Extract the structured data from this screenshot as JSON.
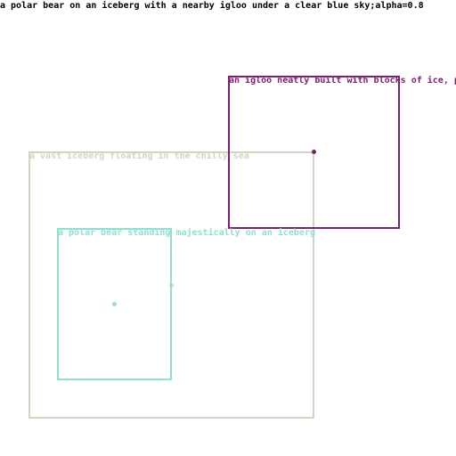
{
  "caption": "a polar bear on an iceberg with a nearby igloo under a clear blue sky;alpha=0.8",
  "boxes": {
    "iceberg": {
      "label": "a vast iceberg floating in the chilly sea",
      "color": "#d3d3c2"
    },
    "igloo": {
      "label": "an igloo neatly built with blocks of ice, p",
      "color": "#7b1f6e"
    },
    "polar_bear": {
      "label": "a polar bear standing majestically on an iceberg",
      "color": "#8fe0cf"
    }
  }
}
